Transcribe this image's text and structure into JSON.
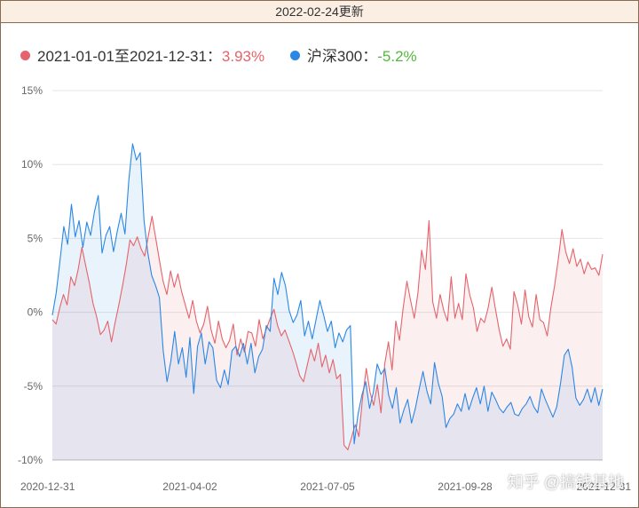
{
  "header": {
    "update_text": "2022-02-24更新"
  },
  "legend": {
    "items": [
      {
        "label": "2021-01-01至2021-12-31：",
        "value": "3.93%",
        "dot_color": "#e5636b",
        "value_color": "#e5636b"
      },
      {
        "label": "沪深300：",
        "value": "-5.2%",
        "dot_color": "#2b87e5",
        "value_color": "#52b93a"
      }
    ]
  },
  "watermark": {
    "text": "知乎 @搞钱基地"
  },
  "chart_data": {
    "type": "line",
    "title": "",
    "xlabel": "",
    "ylabel": "",
    "ylim": [
      -10,
      15
    ],
    "yticks": [
      "15%",
      "10%",
      "5%",
      "0%",
      "-5%",
      "-10%"
    ],
    "xticks": [
      "2020-12-31",
      "2021-04-02",
      "2021-07-05",
      "2021-09-28",
      "2021-12-31"
    ],
    "grid": true,
    "series": [
      {
        "name": "2021-01-01至2021-12-31",
        "color": "#e5636b",
        "values": [
          -0.5,
          -0.8,
          0.3,
          1.2,
          0.5,
          2.4,
          1.8,
          2.9,
          4.4,
          3.2,
          2.0,
          0.6,
          -0.3,
          -1.5,
          -1.2,
          -0.6,
          -2.0,
          -0.7,
          0.5,
          1.8,
          3.2,
          4.9,
          4.5,
          5.1,
          4.3,
          3.8,
          5.2,
          6.5,
          5.0,
          3.5,
          2.1,
          1.2,
          2.8,
          1.7,
          2.6,
          1.4,
          0.5,
          -0.4,
          0.8,
          -0.6,
          -1.4,
          -0.8,
          0.4,
          -1.2,
          -2.1,
          -0.6,
          -1.8,
          -2.4,
          -1.9,
          -0.8,
          -2.9,
          -1.8,
          -2.7,
          -1.3,
          -1.4,
          -2.3,
          -0.5,
          -1.8,
          -1.1,
          -0.4,
          0.2,
          -0.9,
          -1.6,
          -1.2,
          -1.9,
          -2.6,
          -3.4,
          -4.3,
          -4.7,
          -3.6,
          -2.5,
          -3.3,
          -2.1,
          -3.7,
          -2.9,
          -4.1,
          -3.2,
          -4.5,
          -4.2,
          -9.0,
          -9.3,
          -8.5,
          -7.6,
          -8.4,
          -5.8,
          -3.8,
          -5.4,
          -6.3,
          -4.9,
          -6.8,
          -3.5,
          -2.0,
          -3.9,
          -0.6,
          -1.9,
          0.3,
          2.1,
          0.8,
          -0.4,
          1.3,
          4.2,
          2.9,
          6.2,
          0.7,
          -0.4,
          1.2,
          0.1,
          -0.6,
          2.4,
          -0.4,
          0.6,
          -0.5,
          2.6,
          1.2,
          0.3,
          -1.3,
          -0.4,
          -0.7,
          0.3,
          1.7,
          0.2,
          -1.2,
          -2.3,
          -1.8,
          -2.5,
          1.4,
          0.5,
          -0.8,
          1.5,
          -0.3,
          -1.0,
          1.2,
          -0.5,
          -0.7,
          -1.6,
          0.3,
          1.8,
          3.6,
          5.6,
          4.1,
          3.3,
          4.3,
          3.1,
          3.6,
          2.6,
          3.4,
          2.9,
          3.0,
          2.5,
          3.93
        ]
      },
      {
        "name": "沪深300",
        "color": "#2b87e5",
        "values": [
          -0.2,
          1.3,
          3.5,
          5.8,
          4.6,
          7.3,
          5.1,
          6.2,
          4.4,
          6.1,
          5.2,
          6.8,
          7.9,
          4.0,
          5.2,
          5.8,
          4.1,
          5.5,
          6.7,
          5.3,
          8.9,
          11.4,
          10.3,
          10.8,
          6.2,
          4.0,
          2.5,
          1.8,
          1.0,
          -2.6,
          -4.7,
          -3.3,
          -1.3,
          -3.5,
          -2.4,
          -4.4,
          -1.7,
          -5.5,
          -2.3,
          -1.4,
          -3.5,
          -2.0,
          -2.4,
          -4.6,
          -5.1,
          -3.9,
          -4.9,
          -2.6,
          -2.3,
          -3.0,
          -2.1,
          -3.5,
          -2.1,
          -4.1,
          -3.0,
          -2.5,
          -0.9,
          -1.3,
          2.3,
          1.2,
          2.7,
          1.8,
          0.1,
          -0.7,
          -0.2,
          0.8,
          -1.6,
          -0.6,
          -1.8,
          -0.5,
          0.8,
          -0.2,
          -1.3,
          -0.6,
          -2.4,
          -1.4,
          -2.0,
          -1.2,
          -0.9,
          -8.9,
          -6.9,
          -5.6,
          -4.7,
          -6.5,
          -5.4,
          -3.5,
          -4.2,
          -3.8,
          -5.6,
          -6.5,
          -5.1,
          -7.5,
          -6.6,
          -5.9,
          -7.5,
          -6.5,
          -5.2,
          -4.0,
          -5.3,
          -6.2,
          -3.4,
          -4.8,
          -5.7,
          -7.8,
          -7.2,
          -6.9,
          -6.2,
          -6.7,
          -5.5,
          -6.6,
          -5.8,
          -5.1,
          -6.2,
          -5.0,
          -6.7,
          -5.4,
          -5.9,
          -6.5,
          -6.8,
          -6.4,
          -6.1,
          -6.9,
          -7.0,
          -6.5,
          -6.2,
          -5.7,
          -6.4,
          -6.8,
          -5.2,
          -5.9,
          -6.5,
          -7.1,
          -6.4,
          -4.8,
          -2.9,
          -2.5,
          -3.7,
          -5.8,
          -6.3,
          -5.9,
          -5.2,
          -6.1,
          -5.1,
          -6.3,
          -5.2
        ]
      }
    ]
  }
}
